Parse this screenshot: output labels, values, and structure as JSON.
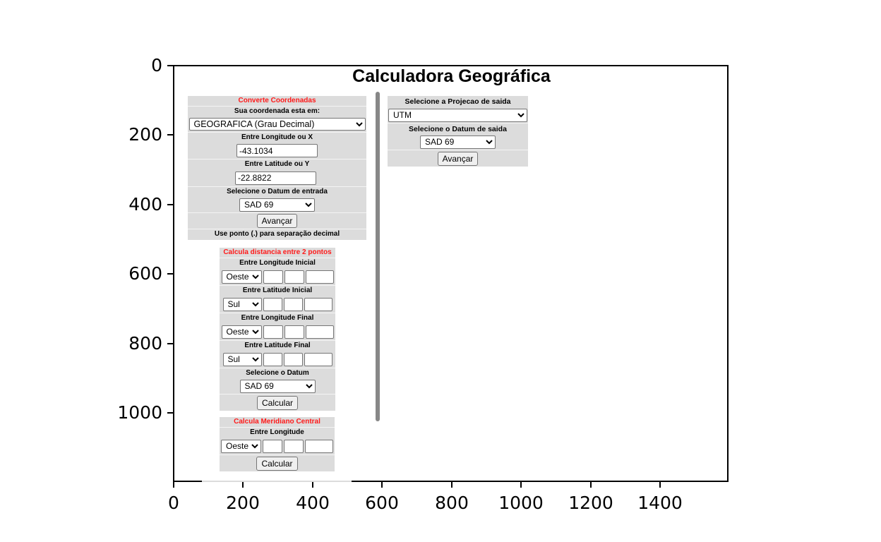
{
  "page_title": "Calculadora Geográfica",
  "axes": {
    "y_ticks": [
      "0",
      "200",
      "400",
      "600",
      "800",
      "1000"
    ],
    "x_ticks": [
      "0",
      "200",
      "400",
      "600",
      "800",
      "1000",
      "1200",
      "1400"
    ]
  },
  "converter": {
    "heading": "Converte Coordenadas",
    "coord_label": "Sua coordenada esta em:",
    "coord_type_value": "GEOGRAFICA (Grau Decimal)",
    "longitude_label": "Entre Longitude ou X",
    "longitude_value": "-43.1034",
    "latitude_label": "Entre Latitude ou Y",
    "latitude_value": "-22.8822",
    "datum_label": "Selecione o Datum de entrada",
    "datum_value": "SAD 69",
    "advance_button": "Avançar",
    "note": "Use ponto (.) para separação decimal"
  },
  "output": {
    "projection_label": "Selecione a Projecao de saida",
    "projection_value": "UTM",
    "datum_label": "Selecione o Datum de saida",
    "datum_value": "SAD 69",
    "advance_button": "Avançar"
  },
  "distance": {
    "heading": "Calcula distancia entre 2 pontos",
    "lon_start_label": "Entre Longitude Inicial",
    "lon_start_dir": "Oeste",
    "lat_start_label": "Entre Latitude Inicial",
    "lat_start_dir": "Sul",
    "lon_end_label": "Entre Longitude Final",
    "lon_end_dir": "Oeste",
    "lat_end_label": "Entre Latitude Final",
    "lat_end_dir": "Sul",
    "datum_label": "Selecione o Datum",
    "datum_value": "SAD 69",
    "calc_button": "Calcular"
  },
  "meridian": {
    "heading": "Calcula Meridiano Central",
    "lon_label": "Entre Longitude",
    "lon_dir": "Oeste",
    "calc_button": "Calcular"
  }
}
